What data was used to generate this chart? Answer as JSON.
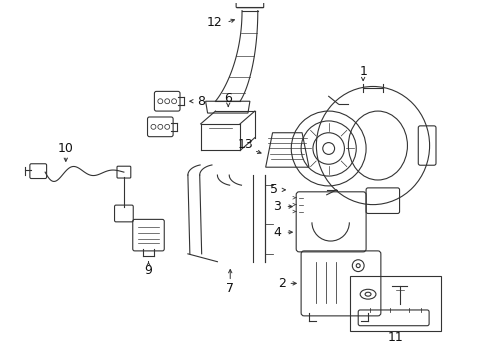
{
  "bg_color": "#ffffff",
  "fig_width": 4.89,
  "fig_height": 3.6,
  "dpi": 100,
  "ec": "#333333",
  "lw": 0.8
}
